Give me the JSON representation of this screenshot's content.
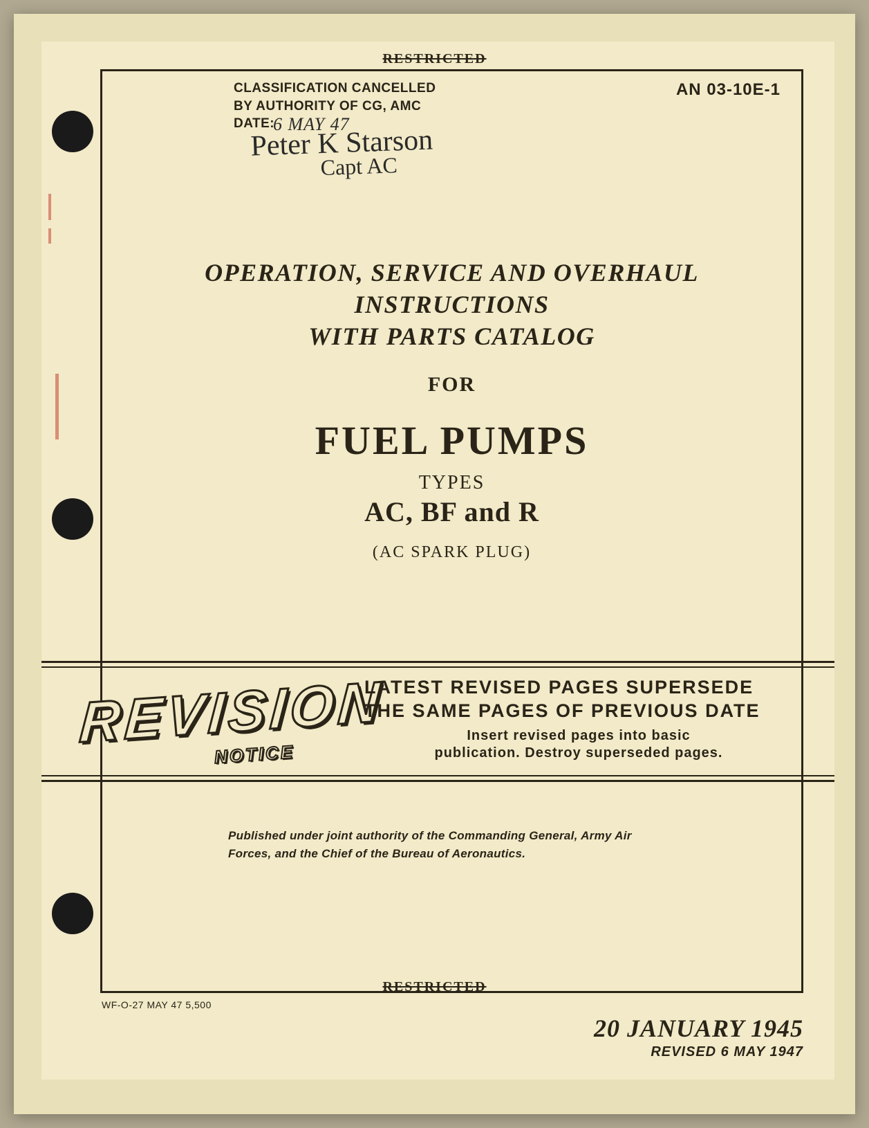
{
  "restricted_label": "RESTRICTED",
  "classification": {
    "line1": "CLASSIFICATION CANCELLED",
    "line2": "BY AUTHORITY OF CG, AMC",
    "line3_prefix": "DATE:",
    "handwritten_date": "6 MAY 47",
    "signature_line1": "Peter K Starson",
    "signature_line2": "Capt AC"
  },
  "doc_number": "AN 03-10E-1",
  "title": {
    "line1": "OPERATION, SERVICE AND OVERHAUL",
    "line2": "INSTRUCTIONS",
    "line3": "WITH PARTS CATALOG",
    "for": "FOR",
    "main": "FUEL PUMPS",
    "types": "TYPES",
    "models": "AC, BF and R",
    "spark": "(AC SPARK PLUG)"
  },
  "revision": {
    "word": "REVISION",
    "notice": "NOTICE",
    "text1": "LATEST REVISED PAGES SUPERSEDE THE SAME PAGES OF PREVIOUS DATE",
    "text2a": "Insert revised pages into basic",
    "text2b": "publication. Destroy superseded pages."
  },
  "published_note": "Published under joint authority of the Commanding General, Army Air Forces, and the Chief of the Bureau of Aeronautics.",
  "print_code": "WF-O-27 MAY 47 5,500",
  "date": {
    "main": "20 JANUARY 1945",
    "revised": "REVISED 6 MAY 1947"
  },
  "colors": {
    "page_bg": "#f2eac8",
    "ink": "#2a2418",
    "outer": "#e8e0b8"
  }
}
